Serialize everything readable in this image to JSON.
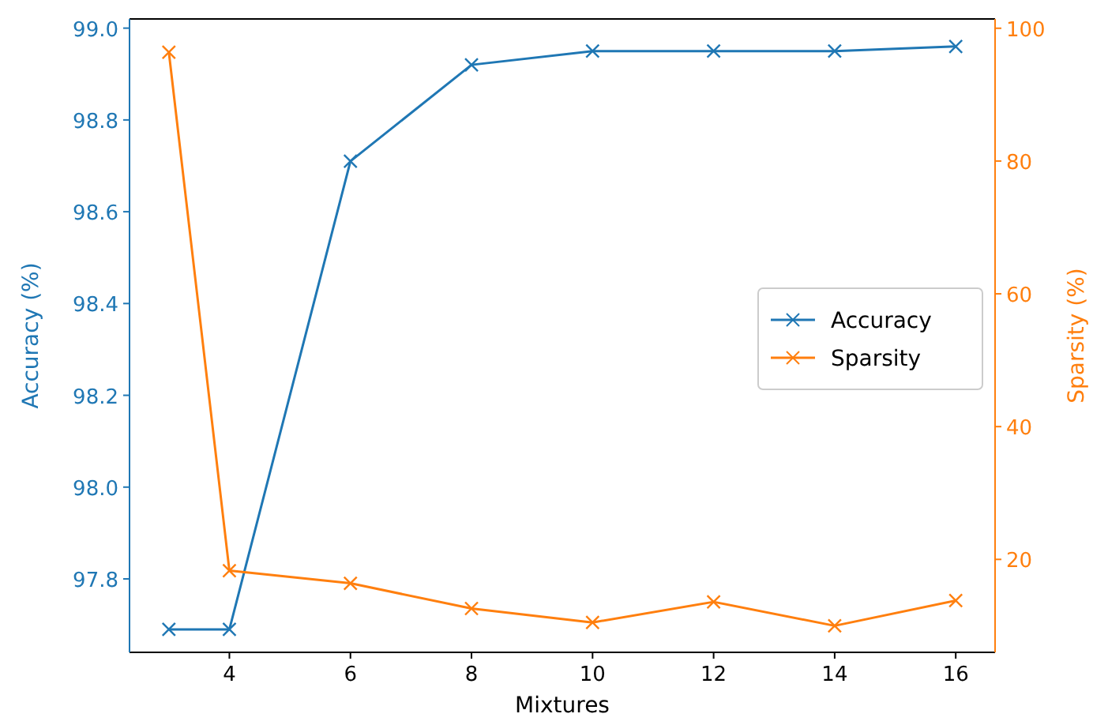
{
  "chart_data": {
    "type": "line",
    "xlabel": "Mixtures",
    "ylabel": "Accuracy (%)",
    "y2label": "Sparsity (%)",
    "x": [
      3,
      4,
      6,
      8,
      10,
      12,
      14,
      16
    ],
    "xlim": [
      2.35,
      16.65
    ],
    "xticks": [
      4,
      6,
      8,
      10,
      12,
      14,
      16
    ],
    "ylim": [
      97.64,
      99.02
    ],
    "yticks": [
      {
        "value": 97.8,
        "label": "97.8"
      },
      {
        "value": 98.0,
        "label": "98.0"
      },
      {
        "value": 98.2,
        "label": "98.2"
      },
      {
        "value": 98.4,
        "label": "98.4"
      },
      {
        "value": 98.6,
        "label": "98.6"
      },
      {
        "value": 98.8,
        "label": "98.8"
      },
      {
        "value": 99.0,
        "label": "99.0"
      }
    ],
    "y2lim": [
      6,
      101.4
    ],
    "y2ticks": [
      20,
      40,
      60,
      80,
      100
    ],
    "marker": "cross",
    "legend": "center right",
    "series": [
      {
        "name": "Accuracy",
        "color": "#1f77b4",
        "values": [
          97.69,
          97.69,
          98.71,
          98.92,
          98.95,
          98.95,
          98.95,
          98.96
        ]
      },
      {
        "name": "Sparsity",
        "color": "#ff7f0e",
        "axis": "y2",
        "values": [
          96.4,
          18.3,
          16.4,
          12.6,
          10.5,
          13.6,
          10.0,
          13.8
        ]
      }
    ]
  }
}
